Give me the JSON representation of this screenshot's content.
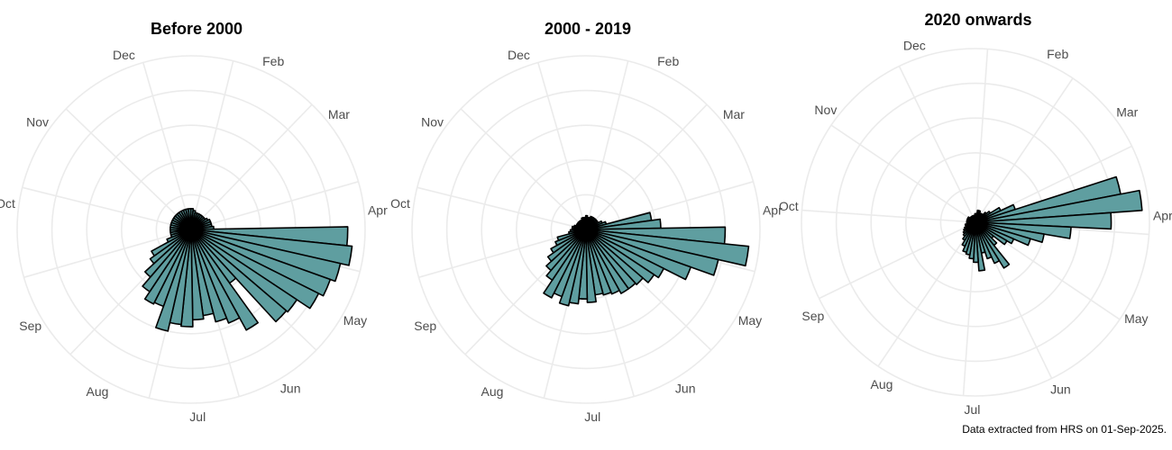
{
  "chart_data": [
    {
      "type": "polar-bar",
      "title": "Before 2000",
      "bins_per_year": 52,
      "month_labels": [
        "Feb",
        "Mar",
        "Apr",
        "May",
        "Jun",
        "Jul",
        "Aug",
        "Sep",
        "Oct",
        "Nov",
        "Dec"
      ],
      "start_bin": 0,
      "values": [
        0.12,
        0.11,
        0.1,
        0.1,
        0.1,
        0.1,
        0.1,
        0.1,
        0.11,
        0.12,
        0.12,
        0.12,
        0.13,
        0.9,
        0.93,
        0.88,
        0.85,
        0.82,
        0.73,
        0.72,
        0.38,
        0.66,
        0.58,
        0.55,
        0.5,
        0.52,
        0.56,
        0.55,
        0.6,
        0.47,
        0.48,
        0.43,
        0.36,
        0.29,
        0.26,
        0.15,
        0.12,
        0.12,
        0.12,
        0.12,
        0.12,
        0.12,
        0.12,
        0.12,
        0.12,
        0.12,
        0.12,
        0.12,
        0.12,
        0.12,
        0.12,
        0.12
      ]
    },
    {
      "type": "polar-bar",
      "title": "2000 - 2019",
      "bins_per_year": 52,
      "month_labels": [
        "Feb",
        "Mar",
        "Apr",
        "May",
        "Jun",
        "Jul",
        "Aug",
        "Sep",
        "Oct",
        "Nov",
        "Dec"
      ],
      "start_bin": 0,
      "values": [
        0.08,
        0.07,
        0.07,
        0.08,
        0.08,
        0.08,
        0.08,
        0.08,
        0.08,
        0.1,
        0.12,
        0.38,
        0.43,
        0.8,
        0.94,
        0.78,
        0.64,
        0.5,
        0.47,
        0.43,
        0.42,
        0.42,
        0.4,
        0.39,
        0.38,
        0.42,
        0.4,
        0.43,
        0.45,
        0.41,
        0.44,
        0.35,
        0.31,
        0.27,
        0.23,
        0.19,
        0.17,
        0.1,
        0.09,
        0.08,
        0.08,
        0.07,
        0.06,
        0.06,
        0.06,
        0.06,
        0.06,
        0.06,
        0.06,
        0.07,
        0.07,
        0.07
      ]
    },
    {
      "type": "polar-bar",
      "title": "2020 onwards",
      "bins_per_year": 52,
      "month_labels": [
        "Dec",
        "Feb",
        "Mar",
        "Apr",
        "May",
        "Jun",
        "Jul",
        "Aug",
        "Sep",
        "Oct",
        "Nov"
      ],
      "start_bin": 0,
      "values": [
        0.04,
        0.05,
        0.05,
        0.07,
        0.07,
        0.05,
        0.06,
        0.06,
        0.08,
        0.1,
        0.16,
        0.24,
        0.85,
        0.96,
        0.78,
        0.55,
        0.4,
        0.33,
        0.24,
        0.21,
        0.13,
        0.17,
        0.31,
        0.26,
        0.22,
        0.18,
        0.28,
        0.23,
        0.21,
        0.19,
        0.18,
        0.15,
        0.12,
        0.1,
        0.09,
        0.08,
        0.07,
        0.06,
        0.06,
        0.05,
        0.05,
        0.05,
        0.05,
        0.05,
        0.05,
        0.05,
        0.04,
        0.04,
        0.04,
        0.04,
        0.04,
        0.04
      ]
    }
  ],
  "style": {
    "bar_fill": "#5f9ea0",
    "bar_stroke": "#000000",
    "grid": "#ebebeb",
    "label_color": "#4d4d4d"
  },
  "caption": "Data extracted from HRS on 01-Sep-2025."
}
